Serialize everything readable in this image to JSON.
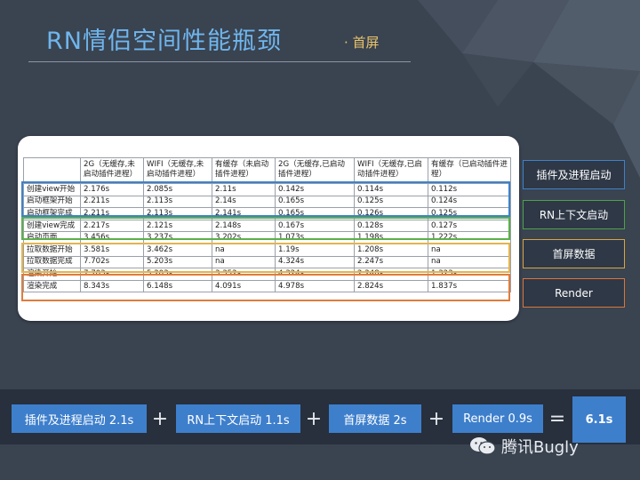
{
  "slide": {
    "title": "RN情侣空间性能瓶颈",
    "subtitle": "· 首屏"
  },
  "table": {
    "headers": [
      "",
      "2G（无缓存,未启动插件进程）",
      "WIFI（无缓存,未启动插件进程）",
      "有缓存（未启动插件进程）",
      "2G（无缓存,已启动插件进程）",
      "WIFI（无缓存,已启动插件进程）",
      "有缓存（已启动插件进程）"
    ],
    "rows": [
      [
        "创建view开始",
        "2.176s",
        "2.085s",
        "2.11s",
        "0.142s",
        "0.114s",
        "0.112s"
      ],
      [
        "启动框架开始",
        "2.211s",
        "2.113s",
        "2.14s",
        "0.165s",
        "0.125s",
        "0.124s"
      ],
      [
        "启动框架完成",
        "2.211s",
        "2.113s",
        "2.141s",
        "0.165s",
        "0.126s",
        "0.125s"
      ],
      [
        "创建view完成",
        "2.217s",
        "2.121s",
        "2.148s",
        "0.167s",
        "0.128s",
        "0.127s"
      ],
      [
        "启动页面",
        "3.456s",
        "3.237s",
        "3.202s",
        "1.073s",
        "1.198s",
        "1.222s"
      ],
      [
        "拉取数据开始",
        "3.581s",
        "3.462s",
        "na",
        "1.19s",
        "1.208s",
        "na"
      ],
      [
        "拉取数据完成",
        "7.702s",
        "5.203s",
        "na",
        "4.324s",
        "2.247s",
        "na"
      ],
      [
        "渲染开始",
        "7.703s",
        "5.203s",
        "3.352s",
        "4.324s",
        "2.248s",
        "1.323s"
      ],
      [
        "渲染完成",
        "8.343s",
        "6.148s",
        "4.091s",
        "4.978s",
        "2.824s",
        "1.837s"
      ]
    ]
  },
  "phases": {
    "plugin": "插件及进程启动",
    "context": "RN上下文启动",
    "data": "首屏数据",
    "render": "Render"
  },
  "summary": {
    "plugin": "插件及进程启动 2.1s",
    "context": "RN上下文启动 1.1s",
    "data": "首屏数据 2s",
    "render": "Render 0.9s",
    "plus": "+",
    "equals": "=",
    "total": "6.1s"
  },
  "brand": {
    "name": "腾讯Bugly"
  },
  "colors": {
    "blue": "#3d82c9",
    "green": "#5bb04a",
    "yellow": "#e4b44e",
    "orange": "#df7c3c"
  }
}
